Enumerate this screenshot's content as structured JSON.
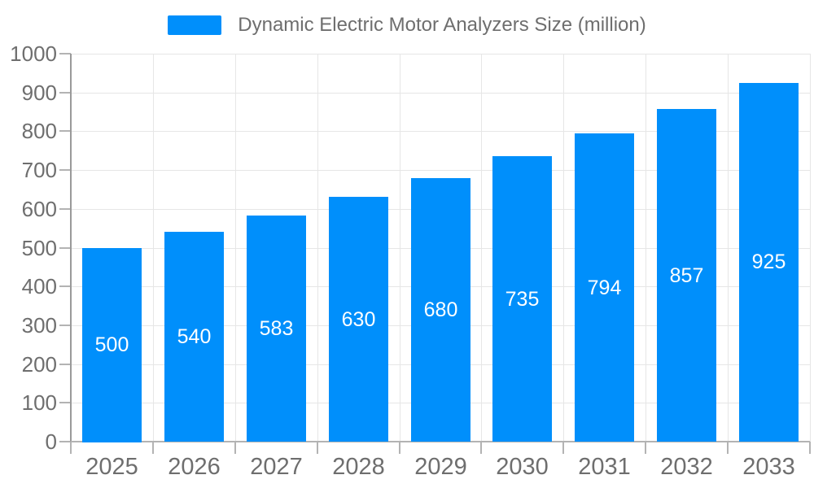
{
  "chart_data": {
    "type": "bar",
    "title": "Dynamic Electric Motor Analyzers Size (million)",
    "legend": {
      "label": "Dynamic Electric Motor Analyzers Size (million)",
      "position": "top-center"
    },
    "categories": [
      "2025",
      "2026",
      "2027",
      "2028",
      "2029",
      "2030",
      "2031",
      "2032",
      "2033"
    ],
    "series": [
      {
        "name": "Dynamic Electric Motor Analyzers Size (million)",
        "values": [
          500,
          540,
          583,
          630,
          680,
          735,
          794,
          857,
          925
        ]
      }
    ],
    "value_labels": [
      "500",
      "540",
      "583",
      "630",
      "680",
      "735",
      "794",
      "857",
      "925"
    ],
    "xlabel": "",
    "ylabel": "",
    "ylim": [
      0,
      1000
    ],
    "ytick_step": 100,
    "yticks": [
      0,
      100,
      200,
      300,
      400,
      500,
      600,
      700,
      800,
      900,
      1000
    ],
    "grid": true,
    "colors": {
      "bar": "#008FFB",
      "value_label": "#FFFFFF",
      "axis_text": "#6E6E6E",
      "legend_text": "#6E6E6E",
      "gridline": "#E6E6E6",
      "axis_line": "#B3B3B3",
      "yaxis_line": "#9A9A9A",
      "background": "#FFFFFF"
    }
  }
}
